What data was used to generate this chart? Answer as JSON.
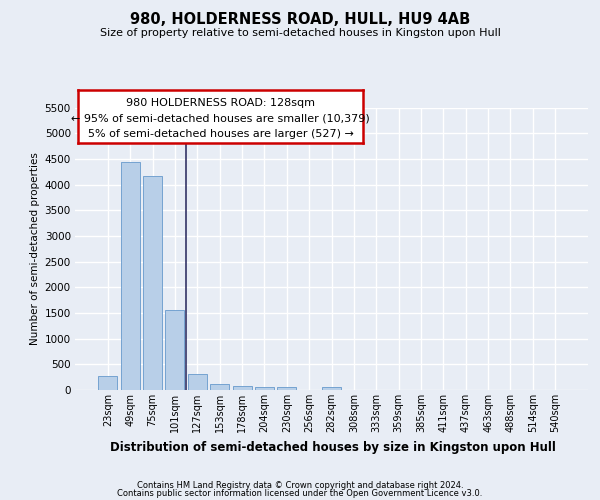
{
  "title": "980, HOLDERNESS ROAD, HULL, HU9 4AB",
  "subtitle": "Size of property relative to semi-detached houses in Kingston upon Hull",
  "xlabel": "Distribution of semi-detached houses by size in Kingston upon Hull",
  "ylabel": "Number of semi-detached properties",
  "footnote1": "Contains HM Land Registry data © Crown copyright and database right 2024.",
  "footnote2": "Contains public sector information licensed under the Open Government Licence v3.0.",
  "annotation_line1": "980 HOLDERNESS ROAD: 128sqm",
  "annotation_line2": "← 95% of semi-detached houses are smaller (10,379)",
  "annotation_line3": "5% of semi-detached houses are larger (527) →",
  "bar_color": "#b8cfe8",
  "bar_edge_color": "#6699cc",
  "vline_color": "#333366",
  "vline_x_idx": 4,
  "categories": [
    "23sqm",
    "49sqm",
    "75sqm",
    "101sqm",
    "127sqm",
    "153sqm",
    "178sqm",
    "204sqm",
    "230sqm",
    "256sqm",
    "282sqm",
    "308sqm",
    "333sqm",
    "359sqm",
    "385sqm",
    "411sqm",
    "437sqm",
    "463sqm",
    "488sqm",
    "514sqm",
    "540sqm"
  ],
  "values": [
    280,
    4430,
    4160,
    1560,
    320,
    120,
    80,
    65,
    60,
    0,
    60,
    0,
    0,
    0,
    0,
    0,
    0,
    0,
    0,
    0,
    0
  ],
  "ylim": [
    0,
    5500
  ],
  "yticks": [
    0,
    500,
    1000,
    1500,
    2000,
    2500,
    3000,
    3500,
    4000,
    4500,
    5000,
    5500
  ],
  "bg_color": "#e8edf5",
  "grid_color": "#ffffff",
  "ann_box_color": "white",
  "ann_border_color": "#cc0000"
}
